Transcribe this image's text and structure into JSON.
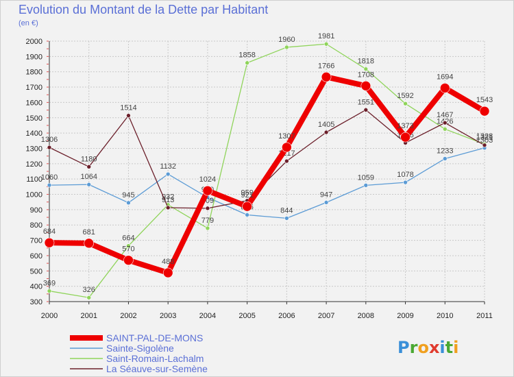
{
  "header": {
    "title": "Evolution du Montant de la Dette par Habitant",
    "unit": "(en €)"
  },
  "logo": {
    "letters": [
      "P",
      "r",
      "o",
      "x",
      "i",
      "t",
      "i"
    ],
    "colors": [
      "#3a8fd8",
      "#4aa832",
      "#f0a020",
      "#e03b2e",
      "#3a8fd8",
      "#4aa832",
      "#f0a020"
    ]
  },
  "chart_data": {
    "type": "line",
    "title": "Evolution du Montant de la Dette par Habitant",
    "ylabel": "(en €)",
    "xlabel": "",
    "ylim": [
      300,
      2000
    ],
    "yticks": [
      300,
      400,
      500,
      600,
      700,
      800,
      900,
      1000,
      1100,
      1200,
      1300,
      1400,
      1500,
      1600,
      1700,
      1800,
      1900,
      2000
    ],
    "x": [
      "2000",
      "2001",
      "2002",
      "2003",
      "2004",
      "2005",
      "2006",
      "2007",
      "2008",
      "2009",
      "2010",
      "2011"
    ],
    "grid": true,
    "legend_position": "bottom-left",
    "series": [
      {
        "name": "Sainte-Sigolène",
        "color": "#5b9bd5",
        "width": 1.3,
        "values": [
          1060,
          1064,
          945,
          1132,
          980,
          866,
          844,
          947,
          1059,
          1078,
          1233,
          1303
        ],
        "labels": [
          "1060",
          "1064",
          "945",
          "1132",
          "980",
          "866",
          "844",
          "947",
          "1059",
          "1078",
          "1233",
          "1303"
        ]
      },
      {
        "name": "Saint-Romain-Lachalm",
        "color": "#8fd45a",
        "width": 1.3,
        "values": [
          369,
          326,
          664,
          932,
          779,
          1858,
          1960,
          1981,
          1818,
          1592,
          1426,
          1328
        ],
        "labels": [
          "369",
          "326",
          "664",
          "932",
          "779",
          "1858",
          "1960",
          "1981",
          "1818",
          "1592",
          "1426",
          "1328"
        ]
      },
      {
        "name": "La Séauve-sur-Semène",
        "color": "#6b1f2a",
        "width": 1.3,
        "values": [
          1306,
          1180,
          1514,
          913,
          909,
          959,
          1217,
          1405,
          1551,
          1336,
          1467,
          1321
        ],
        "labels": [
          "1306",
          "1180",
          "1514",
          "913",
          "909",
          "959",
          "1217",
          "1405",
          "1551",
          "1336",
          "1467",
          "1321"
        ]
      },
      {
        "name": "SAINT-PAL-DE-MONS",
        "color": "#ee0000",
        "width": 8,
        "values": [
          684,
          681,
          570,
          488,
          1024,
          921,
          1307,
          1766,
          1708,
          1373,
          1694,
          1543
        ],
        "labels": [
          "684",
          "681",
          "570",
          "488",
          "1024",
          "921",
          "1307",
          "1766",
          "1708",
          "1373",
          "1694",
          "1543"
        ]
      }
    ]
  }
}
